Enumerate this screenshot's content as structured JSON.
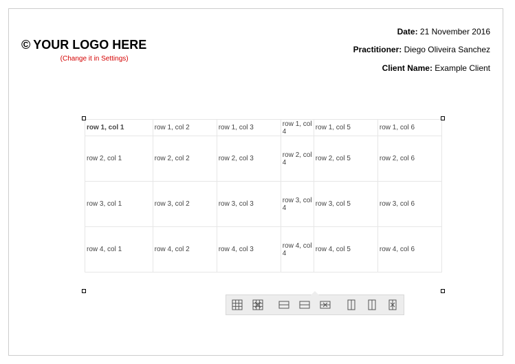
{
  "logo": {
    "copyright": "©",
    "text": "YOUR LOGO HERE",
    "subtext": "(Change it in Settings)"
  },
  "meta": {
    "date_label": "Date:",
    "date_value": "21 November 2016",
    "practitioner_label": "Practitioner:",
    "practitioner_value": "Diego Oliveira Sanchez",
    "client_label": "Client Name:",
    "client_value": "Example Client"
  },
  "table": {
    "columns": 6,
    "col_narrow_index": 3,
    "rows": [
      {
        "bold_first": true,
        "cells": [
          "row 1, col 1",
          "row 1, col 2",
          "row 1, col 3",
          "row 1, col 4",
          "row 1, col 5",
          "row 1, col 6"
        ]
      },
      {
        "bold_first": false,
        "cells": [
          "row 2, col 1",
          "row 2, col 2",
          "row 2, col 3",
          "row 2, col 4",
          "row 2, col 5",
          "row 2, col 6"
        ]
      },
      {
        "bold_first": false,
        "cells": [
          "row 3, col 1",
          "row 3, col 2",
          "row 3, col 3",
          "row 3, col 4",
          "row 3, col 5",
          "row 3, col 6"
        ]
      },
      {
        "bold_first": false,
        "cells": [
          "row 4, col 1",
          "row 4, col 2",
          "row 4, col 3",
          "row 4, col 4",
          "row 4, col 5",
          "row 4, col 6"
        ]
      }
    ],
    "border_color": "#e6e6e6",
    "font_size": 10
  },
  "toolbar": {
    "items": [
      {
        "name": "table-properties-icon"
      },
      {
        "name": "delete-table-icon"
      },
      {
        "sep": true
      },
      {
        "name": "insert-row-above-icon"
      },
      {
        "name": "insert-row-below-icon"
      },
      {
        "name": "delete-row-icon"
      },
      {
        "sep": true
      },
      {
        "name": "insert-col-left-icon"
      },
      {
        "name": "insert-col-right-icon"
      },
      {
        "name": "delete-col-icon"
      }
    ]
  }
}
